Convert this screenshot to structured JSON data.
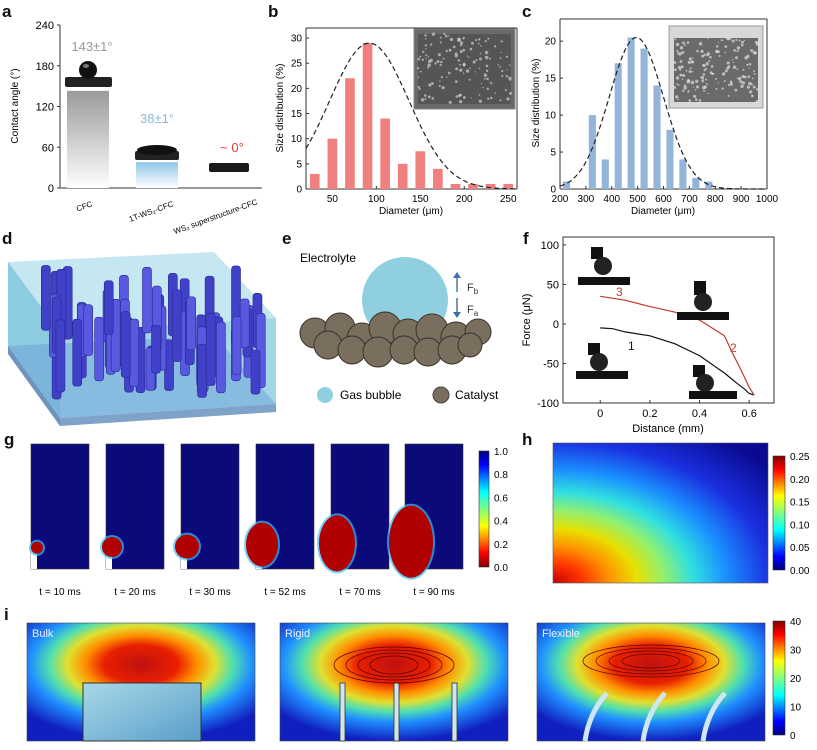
{
  "panel_letters": [
    "a",
    "b",
    "c",
    "d",
    "e",
    "f",
    "g",
    "h",
    "i"
  ],
  "colors": {
    "bar_b": "#f08080",
    "bar_c": "#93b5d8",
    "fit_line": "#222222",
    "catalyst": "#7a6e5e",
    "bubble": "#8fcfe0",
    "curve_red": "#c0392b",
    "curve_black": "#111111",
    "arrow_blue": "#3d6ea8"
  },
  "chart_data": [
    {
      "panel": "a",
      "type": "bar",
      "ylabel": "Contact angle (°)",
      "ylim": [
        0,
        240
      ],
      "yticks": [
        "0",
        "60",
        "120",
        "180",
        "240"
      ],
      "categories": [
        "CFC",
        "1T-WS₂-CFC",
        "WS₂ superstructure-CFC"
      ],
      "values": [
        143,
        38,
        0
      ],
      "value_labels": [
        "143±1°",
        "38±1°",
        "~ 0°"
      ]
    },
    {
      "panel": "b",
      "type": "bar",
      "xlabel": "Diameter (μm)",
      "ylabel": "Size distribution (%)",
      "xlim": [
        20,
        260
      ],
      "ylim": [
        0,
        32
      ],
      "xticks": [
        "50",
        "100",
        "150",
        "200",
        "250"
      ],
      "yticks": [
        "0",
        "5",
        "10",
        "15",
        "20",
        "25",
        "30"
      ],
      "x": [
        30,
        50,
        70,
        90,
        110,
        130,
        150,
        170,
        190,
        210,
        230,
        250
      ],
      "values": [
        3,
        10,
        22,
        29,
        14,
        5,
        7.5,
        4,
        1,
        1,
        1,
        1
      ],
      "fit": "gaussian",
      "inset": "photo"
    },
    {
      "panel": "c",
      "type": "bar",
      "xlabel": "Diameter (μm)",
      "ylabel": "Size distribution (%)",
      "xlim": [
        200,
        1000
      ],
      "ylim": [
        0,
        23
      ],
      "xticks": [
        "200",
        "300",
        "400",
        "500",
        "600",
        "700",
        "800",
        "900",
        "1000"
      ],
      "yticks": [
        "0",
        "5",
        "10",
        "15",
        "20"
      ],
      "x": [
        225,
        325,
        375,
        425,
        475,
        525,
        575,
        625,
        675,
        725,
        775
      ],
      "values": [
        1,
        10,
        4,
        17,
        20.5,
        19,
        14,
        8,
        4,
        1.5,
        1
      ],
      "fit": "gaussian",
      "inset": "photo"
    },
    {
      "panel": "f",
      "type": "line",
      "xlabel": "Distance (mm)",
      "ylabel": "Force (μN)",
      "xlim": [
        -0.15,
        0.7
      ],
      "ylim": [
        -100,
        110
      ],
      "xticks": [
        "0",
        "0.2",
        "0.4",
        "0.6"
      ],
      "yticks": [
        "-100",
        "-50",
        "0",
        "50",
        "100"
      ],
      "series": [
        {
          "name": "1",
          "x": [
            0,
            0.05,
            0.1,
            0.2,
            0.3,
            0.4,
            0.5,
            0.55,
            0.58,
            0.6,
            0.62
          ],
          "y": [
            -5,
            -6,
            -10,
            -15,
            -25,
            -40,
            -62,
            -75,
            -82,
            -88,
            -90
          ]
        },
        {
          "name": "2",
          "x": [
            0.62,
            0.6,
            0.57,
            0.53,
            0.5
          ],
          "y": [
            -90,
            -80,
            -60,
            -35,
            -15
          ]
        },
        {
          "name": "3",
          "x": [
            0.5,
            0.4,
            0.3,
            0.2,
            0.1,
            0
          ],
          "y": [
            -15,
            5,
            15,
            22,
            30,
            35
          ]
        }
      ]
    },
    {
      "panel": "g",
      "type": "heatmap",
      "frames": [
        "t = 10 ms",
        "t = 20 ms",
        "t = 30 ms",
        "t = 52 ms",
        "t = 70 ms",
        "t = 90 ms"
      ],
      "colorbar": [
        "0.0",
        "0.2",
        "0.4",
        "0.6",
        "0.8",
        "1.0"
      ]
    },
    {
      "panel": "h",
      "type": "heatmap",
      "colorbar": [
        "0.00",
        "0.05",
        "0.10",
        "0.15",
        "0.20",
        "0.25"
      ]
    },
    {
      "panel": "i",
      "type": "heatmap",
      "frames": [
        "Bulk",
        "Rigid",
        "Flexible"
      ],
      "colorbar": [
        "0",
        "10",
        "20",
        "30",
        "40"
      ]
    }
  ],
  "panel_e": {
    "title": "Electrolyte",
    "fb": "F",
    "fb_sub": "b",
    "fa": "F",
    "fa_sub": "a",
    "legend_bubble": "Gas bubble",
    "legend_catalyst": "Catalyst"
  },
  "panel_f_labels": [
    "1",
    "2",
    "3"
  ]
}
